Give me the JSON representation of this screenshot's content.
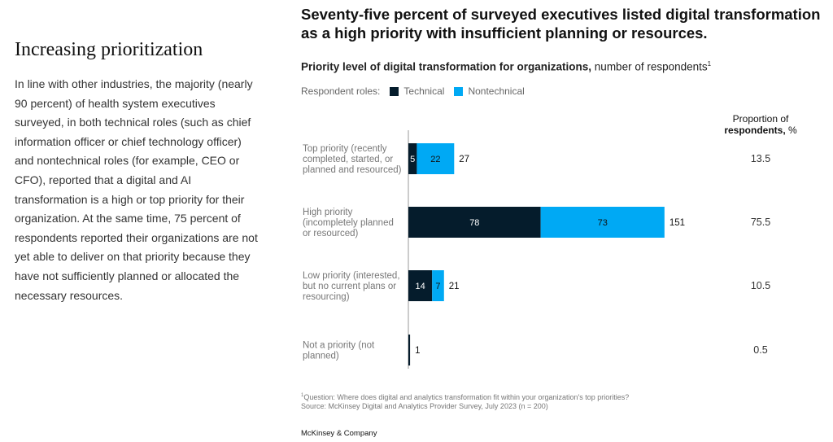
{
  "sidebar": {
    "heading": "Increasing prioritization",
    "body": "In line with other industries, the majority (nearly 90 percent) of health system executives surveyed, in both technical roles (such as chief information officer or chief technology officer) and nontechnical roles (for example, CEO or CFO), reported that a digital and AI transformation is a high or top priority for their organization. At the same time, 75 percent of respondents reported their organizations are not yet able to deliver on that priority because they have not sufficiently planned or allocated the necessary resources."
  },
  "headline": "Seventy-five percent of surveyed executives listed digital transformation as a high priority with insufficient planning or resources.",
  "subtitle": {
    "bold": "Priority level of digital transformation for organizations,",
    "rest": " number of respondents",
    "sup": "1"
  },
  "legend": {
    "label": "Respondent roles:",
    "technical": "Technical",
    "nontechnical": "Nontechnical"
  },
  "proportion_header": {
    "line1": "Proportion of",
    "line2_bold": "respondents,",
    "line2_rest": " %"
  },
  "colors": {
    "technical": "#051c2c",
    "nontechnical": "#00a9f4",
    "axis": "#999999"
  },
  "chart_data": {
    "type": "bar",
    "orientation": "horizontal",
    "stacked": true,
    "title": "Priority level of digital transformation for organizations, number of respondents",
    "categories": [
      [
        "Top priority (recently",
        "completed, started, or",
        "planned and resourced)"
      ],
      [
        "High priority",
        "(incompletely planned",
        "or resourced)"
      ],
      [
        "Low priority (interested,",
        "but no current plans or",
        "resourcing)"
      ],
      [
        "Not a priority (not",
        "planned)"
      ]
    ],
    "series": [
      {
        "name": "Technical",
        "values": [
          5,
          78,
          14,
          1
        ]
      },
      {
        "name": "Nontechnical",
        "values": [
          22,
          73,
          7,
          0
        ]
      }
    ],
    "totals": [
      27,
      151,
      21,
      1
    ],
    "proportions": [
      "13.5",
      "75.5",
      "10.5",
      "0.5"
    ],
    "xlim": [
      0,
      160
    ]
  },
  "footnote": {
    "line1": "Question: Where does digital and analytics transformation fit within your organization's top priorities?",
    "line2": "Source: McKinsey Digital and Analytics Provider Survey, July 2023 (n = 200)",
    "sup": "1"
  },
  "brand": "McKinsey & Company"
}
